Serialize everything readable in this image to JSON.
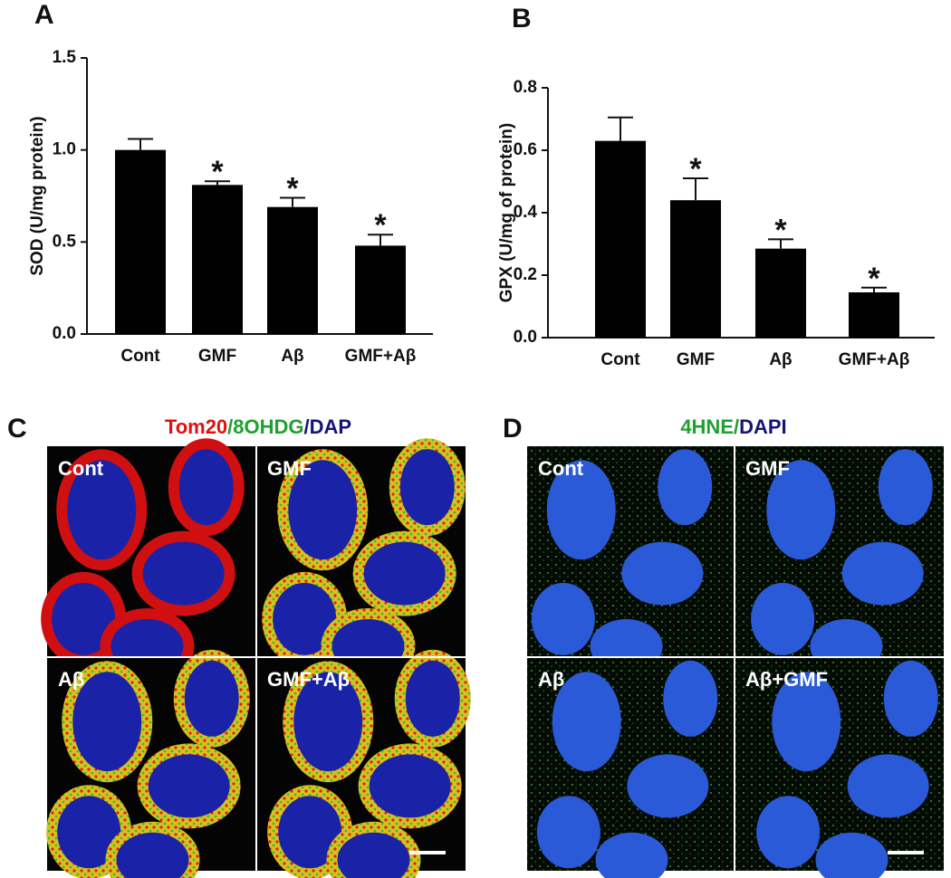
{
  "chart_data": [
    {
      "type": "bar",
      "ylabel": "SOD (U/mg protein)",
      "categories": [
        "Cont",
        "GMF",
        "Aβ",
        "GMF+Aβ"
      ],
      "values": [
        1.0,
        0.81,
        0.69,
        0.48
      ],
      "errors": [
        0.06,
        0.02,
        0.05,
        0.06
      ],
      "significance": [
        null,
        "*",
        "*",
        "*"
      ],
      "color": "#000000",
      "ylim": [
        0,
        1.5
      ],
      "yticks": [
        {
          "value": 0,
          "label": "0.0"
        },
        {
          "value": 0.5,
          "label": "0.5"
        },
        {
          "value": 1,
          "label": "1.0"
        },
        {
          "value": 1.5,
          "label": "1.5"
        }
      ]
    },
    {
      "type": "bar",
      "ylabel": "GPX (U/mg of protein)",
      "categories": [
        "Cont",
        "GMF",
        "Aβ",
        "GMF+Aβ"
      ],
      "values": [
        0.63,
        0.44,
        0.285,
        0.145
      ],
      "errors": [
        0.075,
        0.07,
        0.03,
        0.015
      ],
      "significance": [
        null,
        "*",
        "*",
        "*"
      ],
      "color": "#000000",
      "ylim": [
        0,
        0.8
      ],
      "yticks": [
        {
          "value": 0,
          "label": "0.0"
        },
        {
          "value": 0.2,
          "label": "0.2"
        },
        {
          "value": 0.4,
          "label": "0.4"
        },
        {
          "value": 0.6,
          "label": "0.6"
        },
        {
          "value": 0.8,
          "label": "0.8"
        }
      ]
    }
  ],
  "panel_labels": [
    "A",
    "B",
    "C",
    "D"
  ],
  "panel_c": {
    "title": [
      "Tom20",
      "/8OHDG",
      "/DAP"
    ],
    "images": [
      "Cont",
      "GMF",
      "Aβ",
      "GMF+Aβ"
    ]
  },
  "panel_d": {
    "title": [
      "4HNE/",
      "DAPI"
    ],
    "images": [
      "Cont",
      "GMF",
      "Aβ",
      "Aβ+GMF"
    ]
  }
}
